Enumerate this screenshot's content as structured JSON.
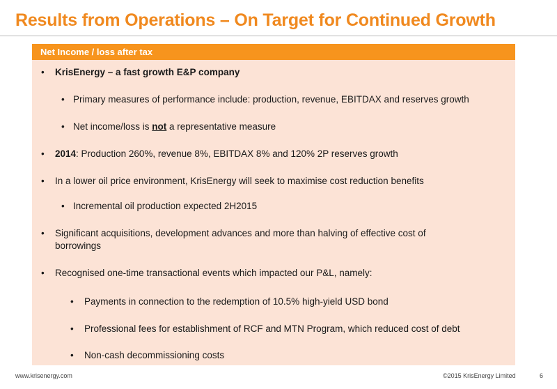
{
  "title": "Results from Operations – On Target for Continued Growth",
  "panel": {
    "header": "Net Income / loss after tax",
    "bullets": [
      {
        "text": "KrisEnergy – a fast growth E&P company"
      },
      {
        "text": "Primary measures of performance include: production, revenue, EBITDAX and reserves growth"
      },
      {
        "before": "Net income/loss is ",
        "emphasis": "not",
        "after": " a representative measure"
      },
      {
        "bold": "2014",
        "rest": ": Production 260%, revenue 8%, EBITDAX 8% and 120% 2P reserves growth"
      },
      {
        "text": "In a lower oil price environment, KrisEnergy will seek to maximise cost reduction benefits"
      },
      {
        "text": "Incremental oil production expected 2H2015"
      },
      {
        "line1": "Significant acquisitions, development advances and more than halving of effective cost of",
        "line2": "borrowings"
      },
      {
        "text": "Recognised one-time transactional events which impacted our P&L, namely:"
      },
      {
        "text": "Payments in connection to the redemption of  10.5% high-yield USD bond"
      },
      {
        "text": "Professional fees for establishment of  RCF and MTN Program, which reduced cost of debt"
      },
      {
        "text": "Non-cash decommissioning costs"
      }
    ]
  },
  "footer": {
    "website": "www.krisenergy.com",
    "copyright": "©2015 KrisEnergy Limited",
    "page": "6"
  }
}
